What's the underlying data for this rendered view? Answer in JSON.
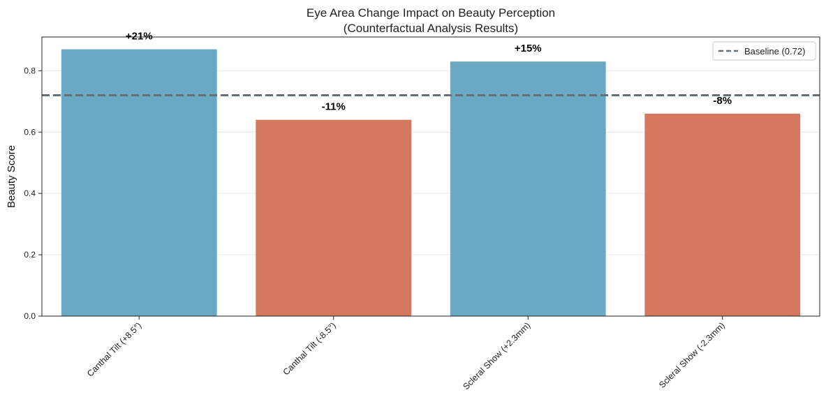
{
  "chart_data": {
    "type": "bar",
    "title": "Eye Area Change Impact on Beauty Perception",
    "subtitle": "(Counterfactual Analysis Results)",
    "xlabel": "",
    "ylabel": "Beauty Score",
    "categories": [
      "Canthal Tilt (+8.5°)",
      "Canthal Tilt (-8.5°)",
      "Scleral Show (+2.3mm)",
      "Scleral Show (-2.3mm)"
    ],
    "values": [
      0.87,
      0.64,
      0.83,
      0.66
    ],
    "data_labels": [
      "+21%",
      "-11%",
      "+15%",
      "-8%"
    ],
    "bar_colors": [
      "#6aa9c3",
      "#d6775f",
      "#6aa9c3",
      "#d6775f"
    ],
    "ylim": [
      0,
      0.91
    ],
    "yticks": [
      0.0,
      0.2,
      0.4,
      0.6,
      0.8
    ],
    "ytick_labels": [
      "0.0",
      "0.2",
      "0.4",
      "0.6",
      "0.8"
    ],
    "baseline": {
      "value": 0.72,
      "label": "Baseline (0.72)",
      "color": "#66707a",
      "style": "dashed"
    },
    "grid": {
      "y": true,
      "x": false
    },
    "legend_position": "top-right"
  }
}
